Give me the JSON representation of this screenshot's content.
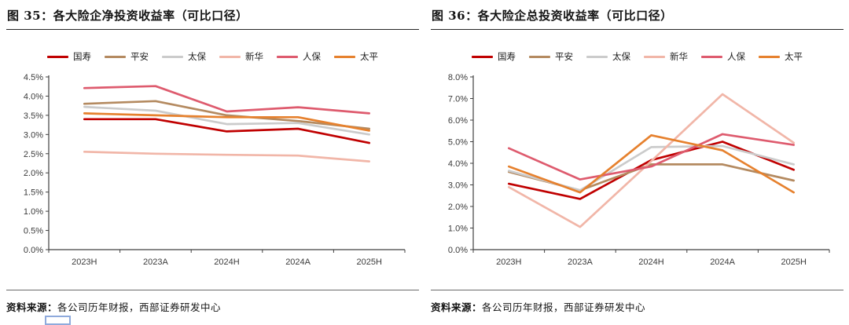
{
  "source": {
    "label": "资料来源：",
    "text": "各公司历年财报，西部证券研发中心"
  },
  "chart_data": [
    {
      "type": "line",
      "title": "图 35：各大险企净投资收益率（可比口径）",
      "categories": [
        "2023H",
        "2023A",
        "2024H",
        "2024A",
        "2025H"
      ],
      "series": [
        {
          "name": "国寿",
          "color": "#c00000",
          "values": [
            3.4,
            3.4,
            3.08,
            3.15,
            2.78
          ]
        },
        {
          "name": "平安",
          "color": "#b48a60",
          "values": [
            3.8,
            3.87,
            3.5,
            3.35,
            3.15
          ]
        },
        {
          "name": "太保",
          "color": "#cbcbcb",
          "values": [
            3.72,
            3.62,
            3.27,
            3.3,
            3.0
          ]
        },
        {
          "name": "新华",
          "color": "#f1b6a8",
          "values": [
            2.55,
            2.5,
            2.47,
            2.45,
            2.3
          ]
        },
        {
          "name": "人保",
          "color": "#de5b6e",
          "values": [
            4.21,
            4.26,
            3.6,
            3.71,
            3.55
          ]
        },
        {
          "name": "太平",
          "color": "#e6812e",
          "values": [
            3.55,
            3.5,
            3.45,
            3.45,
            3.1
          ]
        }
      ],
      "ylim": [
        0,
        4.5
      ],
      "ytick_step": 0.5,
      "ytick_suffix": "%",
      "grid": false,
      "legend_position": "top",
      "xlabel": "",
      "ylabel": ""
    },
    {
      "type": "line",
      "title": "图 36：各大险企总投资收益率（可比口径）",
      "categories": [
        "2023H",
        "2023A",
        "2024H",
        "2024A",
        "2025H"
      ],
      "series": [
        {
          "name": "国寿",
          "color": "#c00000",
          "values": [
            3.05,
            2.35,
            4.15,
            5.0,
            3.7
          ]
        },
        {
          "name": "平安",
          "color": "#b48a60",
          "values": [
            3.6,
            2.75,
            3.95,
            3.95,
            3.2
          ]
        },
        {
          "name": "太保",
          "color": "#cbcbcb",
          "values": [
            3.65,
            2.75,
            4.75,
            4.8,
            3.95
          ]
        },
        {
          "name": "新华",
          "color": "#f1b6a8",
          "values": [
            2.9,
            1.05,
            4.1,
            7.2,
            4.95
          ]
        },
        {
          "name": "人保",
          "color": "#de5b6e",
          "values": [
            4.7,
            3.25,
            3.85,
            5.35,
            4.85
          ]
        },
        {
          "name": "太平",
          "color": "#e6812e",
          "values": [
            3.85,
            2.65,
            5.3,
            4.6,
            2.65
          ]
        }
      ],
      "ylim": [
        0,
        8.0
      ],
      "ytick_step": 1.0,
      "ytick_suffix": "%",
      "grid": false,
      "legend_position": "top",
      "xlabel": "",
      "ylabel": ""
    }
  ]
}
